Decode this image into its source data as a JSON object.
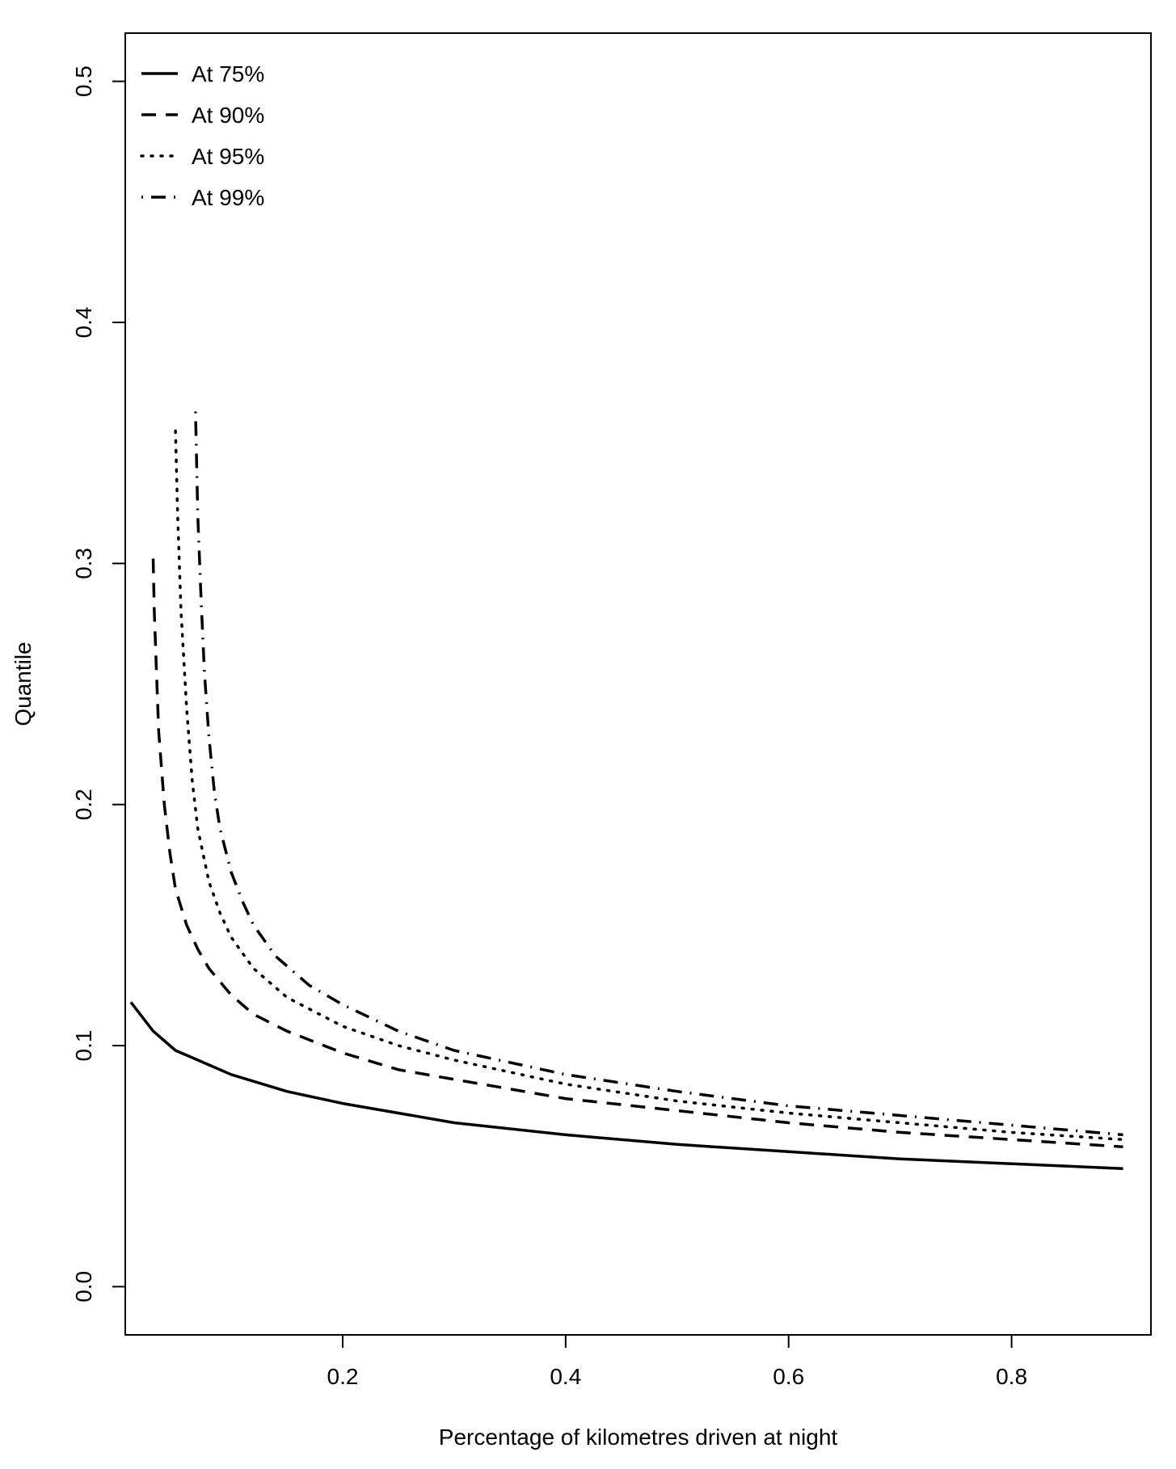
{
  "chart_data": {
    "type": "line",
    "title": "",
    "xlabel": "Percentage of kilometres driven at night",
    "ylabel": "Quantile",
    "xlim": [
      0.005,
      0.925
    ],
    "ylim": [
      -0.02,
      0.52
    ],
    "xticks": [
      0.2,
      0.4,
      0.6,
      0.8
    ],
    "xtick_labels": [
      "0.2",
      "0.4",
      "0.6",
      "0.8"
    ],
    "yticks": [
      0.0,
      0.1,
      0.2,
      0.3,
      0.4,
      0.5
    ],
    "ytick_labels": [
      "0.0",
      "0.1",
      "0.2",
      "0.3",
      "0.4",
      "0.5"
    ],
    "grid": false,
    "legend_position": "top-left",
    "series": [
      {
        "name": "At 75%",
        "style": "solid",
        "x": [
          0.01,
          0.02,
          0.03,
          0.04,
          0.05,
          0.07,
          0.1,
          0.15,
          0.2,
          0.3,
          0.4,
          0.5,
          0.6,
          0.7,
          0.8,
          0.9
        ],
        "y": [
          0.118,
          0.112,
          0.106,
          0.102,
          0.098,
          0.094,
          0.088,
          0.081,
          0.076,
          0.068,
          0.063,
          0.059,
          0.056,
          0.053,
          0.051,
          0.049
        ]
      },
      {
        "name": "At 90%",
        "style": "dashed",
        "x": [
          0.03,
          0.031,
          0.033,
          0.035,
          0.04,
          0.045,
          0.05,
          0.06,
          0.07,
          0.08,
          0.1,
          0.12,
          0.15,
          0.2,
          0.25,
          0.3,
          0.4,
          0.5,
          0.6,
          0.7,
          0.8,
          0.9
        ],
        "y": [
          0.302,
          0.28,
          0.255,
          0.23,
          0.2,
          0.18,
          0.165,
          0.15,
          0.14,
          0.132,
          0.121,
          0.113,
          0.106,
          0.097,
          0.09,
          0.086,
          0.078,
          0.073,
          0.068,
          0.064,
          0.061,
          0.058
        ]
      },
      {
        "name": "At 95%",
        "style": "dotted",
        "x": [
          0.05,
          0.052,
          0.055,
          0.06,
          0.065,
          0.07,
          0.08,
          0.09,
          0.1,
          0.12,
          0.15,
          0.2,
          0.25,
          0.3,
          0.4,
          0.5,
          0.6,
          0.7,
          0.8,
          0.9
        ],
        "y": [
          0.355,
          0.32,
          0.28,
          0.24,
          0.21,
          0.19,
          0.168,
          0.155,
          0.145,
          0.132,
          0.12,
          0.108,
          0.1,
          0.094,
          0.084,
          0.077,
          0.072,
          0.068,
          0.064,
          0.061
        ]
      },
      {
        "name": "At 99%",
        "style": "dotdash",
        "x": [
          0.068,
          0.07,
          0.073,
          0.076,
          0.08,
          0.085,
          0.09,
          0.1,
          0.11,
          0.12,
          0.14,
          0.17,
          0.2,
          0.25,
          0.3,
          0.4,
          0.5,
          0.6,
          0.7,
          0.8,
          0.9
        ],
        "y": [
          0.363,
          0.32,
          0.285,
          0.255,
          0.228,
          0.205,
          0.19,
          0.172,
          0.16,
          0.15,
          0.137,
          0.125,
          0.117,
          0.106,
          0.098,
          0.088,
          0.081,
          0.075,
          0.071,
          0.067,
          0.063
        ]
      }
    ]
  }
}
